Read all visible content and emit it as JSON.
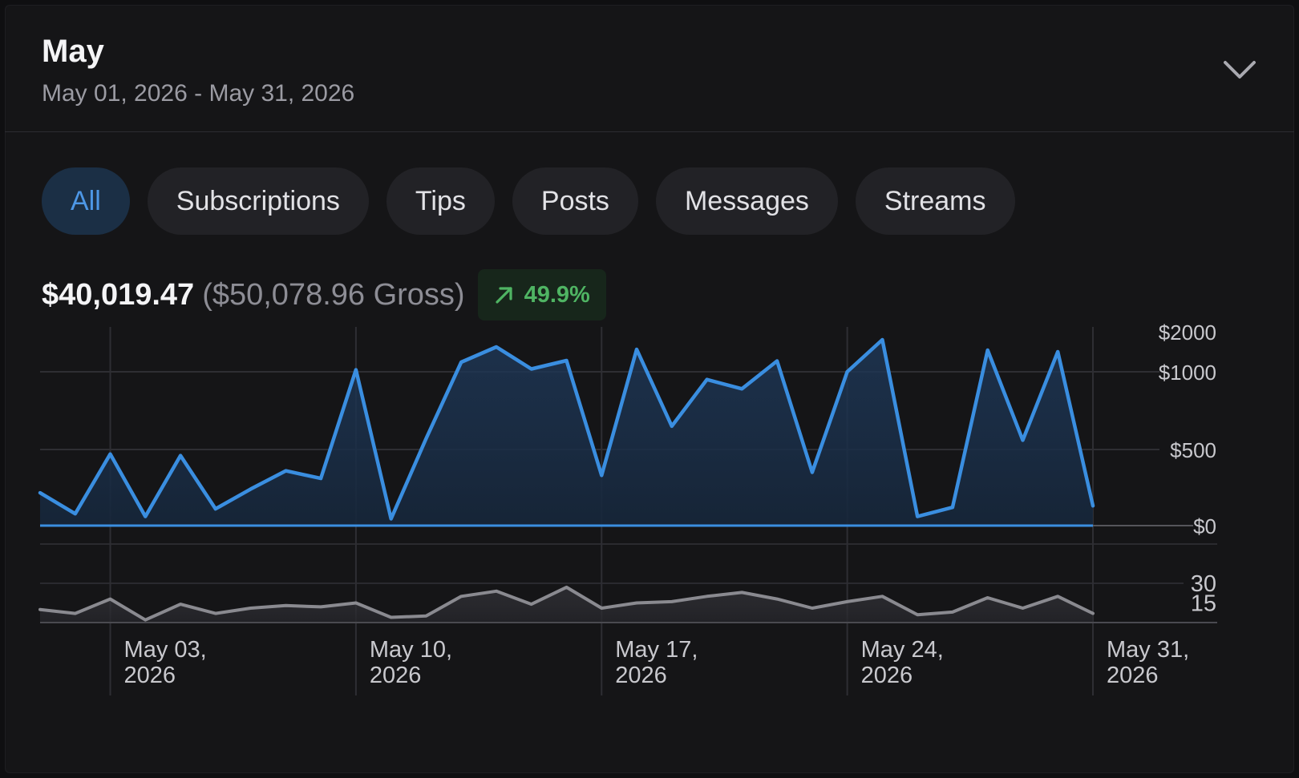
{
  "header": {
    "title": "May",
    "range": "May 01, 2026 - May 31, 2026",
    "toggle_icon": "chevron-down-icon"
  },
  "filters": [
    {
      "label": "All",
      "active": true
    },
    {
      "label": "Subscriptions",
      "active": false
    },
    {
      "label": "Tips",
      "active": false
    },
    {
      "label": "Posts",
      "active": false
    },
    {
      "label": "Messages",
      "active": false
    },
    {
      "label": "Streams",
      "active": false
    }
  ],
  "summary": {
    "net": "$40,019.47",
    "gross": "($50,078.96 Gross)",
    "growth": "49.9%",
    "growth_icon": "arrow-up-right-icon"
  },
  "colors": {
    "accent": "#3a8ee0",
    "secondary_line": "#8a8a90",
    "growth": "#4fb463",
    "active_chip_bg": "#1b2f45"
  },
  "chart_data": [
    {
      "type": "area",
      "series": [
        {
          "values": [
            215,
            78,
            470,
            60,
            460,
            110,
            240,
            360,
            310,
            1050,
            45,
            570,
            1240,
            1620,
            1070,
            1280,
            330,
            1560,
            650,
            950,
            890,
            1270,
            350,
            1000,
            1800,
            60,
            120,
            1540,
            560,
            1500,
            130
          ]
        }
      ],
      "x": [
        "May 01, 2026",
        "May 02, 2026",
        "May 03, 2026",
        "May 04, 2026",
        "May 05, 2026",
        "May 06, 2026",
        "May 07, 2026",
        "May 08, 2026",
        "May 09, 2026",
        "May 10, 2026",
        "May 11, 2026",
        "May 12, 2026",
        "May 13, 2026",
        "May 14, 2026",
        "May 15, 2026",
        "May 16, 2026",
        "May 17, 2026",
        "May 18, 2026",
        "May 19, 2026",
        "May 20, 2026",
        "May 21, 2026",
        "May 22, 2026",
        "May 23, 2026",
        "May 24, 2026",
        "May 25, 2026",
        "May 26, 2026",
        "May 27, 2026",
        "May 28, 2026",
        "May 29, 2026",
        "May 30, 2026",
        "May 31, 2026"
      ],
      "x_ticks": [
        "May 03, 2026",
        "May 10, 2026",
        "May 17, 2026",
        "May 24, 2026",
        "May 31, 2026"
      ],
      "y_ticks": [
        "$2000",
        "$1000",
        "$500",
        "$0"
      ],
      "y_tick_values": [
        2000,
        1000,
        500,
        0
      ],
      "ylim": [
        0,
        2000
      ],
      "grid": true
    },
    {
      "type": "area",
      "series": [
        {
          "values": [
            10,
            7,
            18,
            2,
            14,
            7,
            11,
            13,
            12,
            15,
            4,
            5,
            20,
            24,
            14,
            27,
            11,
            15,
            16,
            20,
            23,
            18,
            11,
            16,
            20,
            6,
            8,
            19,
            11,
            20,
            7
          ]
        }
      ],
      "x": [
        "May 01, 2026",
        "May 02, 2026",
        "May 03, 2026",
        "May 04, 2026",
        "May 05, 2026",
        "May 06, 2026",
        "May 07, 2026",
        "May 08, 2026",
        "May 09, 2026",
        "May 10, 2026",
        "May 11, 2026",
        "May 12, 2026",
        "May 13, 2026",
        "May 14, 2026",
        "May 15, 2026",
        "May 16, 2026",
        "May 17, 2026",
        "May 18, 2026",
        "May 19, 2026",
        "May 20, 2026",
        "May 21, 2026",
        "May 22, 2026",
        "May 23, 2026",
        "May 24, 2026",
        "May 25, 2026",
        "May 26, 2026",
        "May 27, 2026",
        "May 28, 2026",
        "May 29, 2026",
        "May 30, 2026",
        "May 31, 2026"
      ],
      "y_ticks": [
        "30",
        "15"
      ],
      "y_tick_values": [
        30,
        15
      ],
      "ylim": [
        0,
        30
      ],
      "grid": true
    }
  ]
}
